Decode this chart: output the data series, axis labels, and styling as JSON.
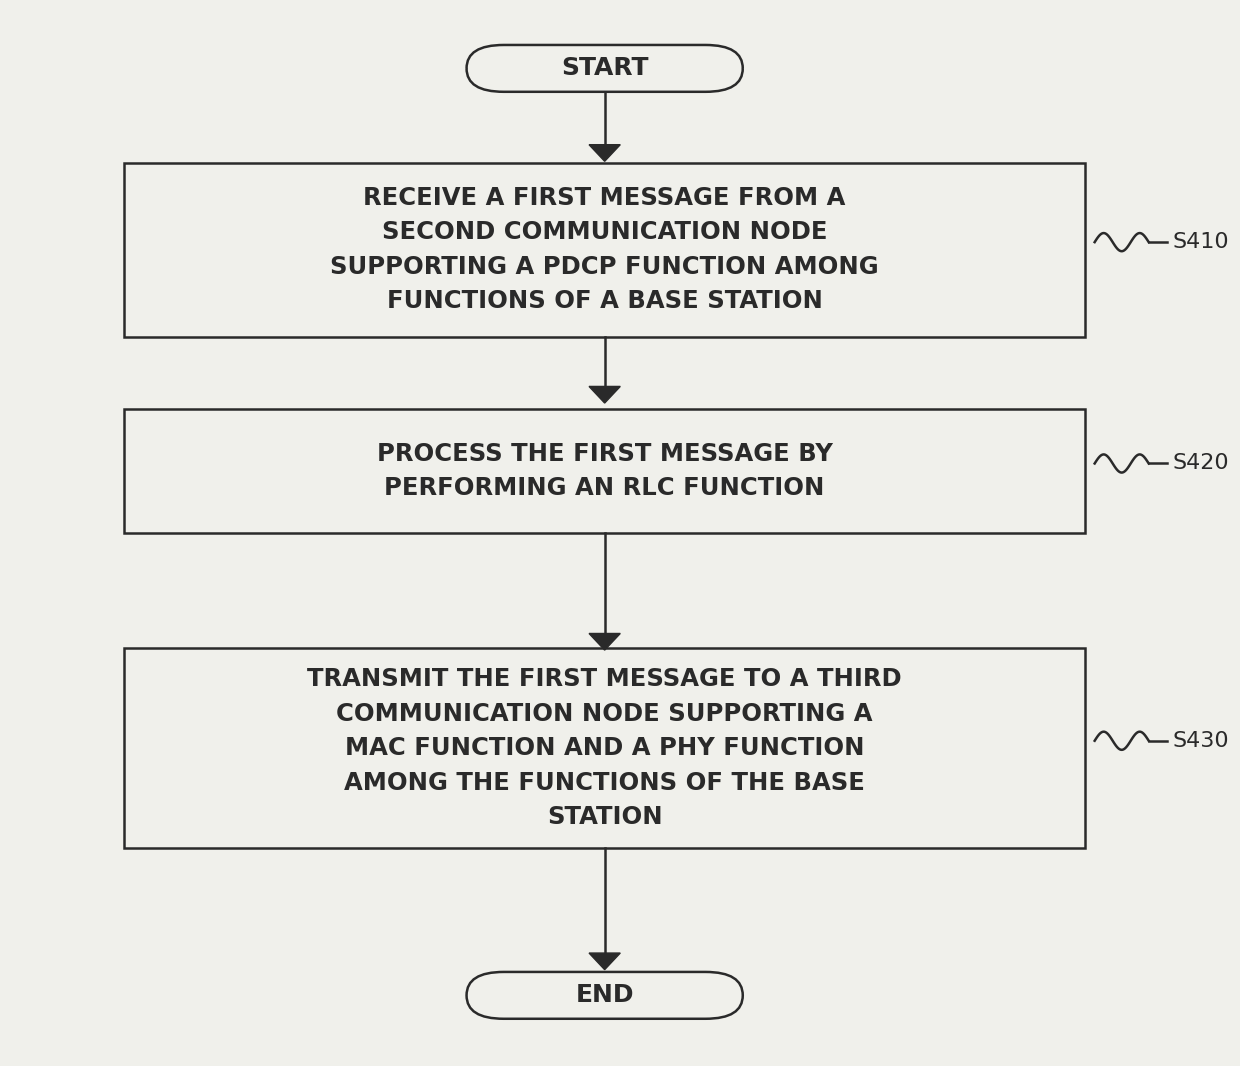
{
  "background_color": "#f0f0eb",
  "box_color": "#f0f0eb",
  "box_edge_color": "#2a2a2a",
  "text_color": "#2a2a2a",
  "arrow_color": "#2a2a2a",
  "label_color": "#2a2a2a",
  "start_end_text": [
    "START",
    "END"
  ],
  "box1_text": "RECEIVE A FIRST MESSAGE FROM A\nSECOND COMMUNICATION NODE\nSUPPORTING A PDCP FUNCTION AMONG\nFUNCTIONS OF A BASE STATION",
  "box2_text": "PROCESS THE FIRST MESSAGE BY\nPERFORMING AN RLC FUNCTION",
  "box3_text": "TRANSMIT THE FIRST MESSAGE TO A THIRD\nCOMMUNICATION NODE SUPPORTING A\nMAC FUNCTION AND A PHY FUNCTION\nAMONG THE FUNCTIONS OF THE BASE\nSTATION",
  "labels": [
    "S410",
    "S420",
    "S430"
  ],
  "font_size_box": 17.5,
  "font_size_label": 16,
  "font_size_terminal": 18,
  "line_width": 1.8
}
